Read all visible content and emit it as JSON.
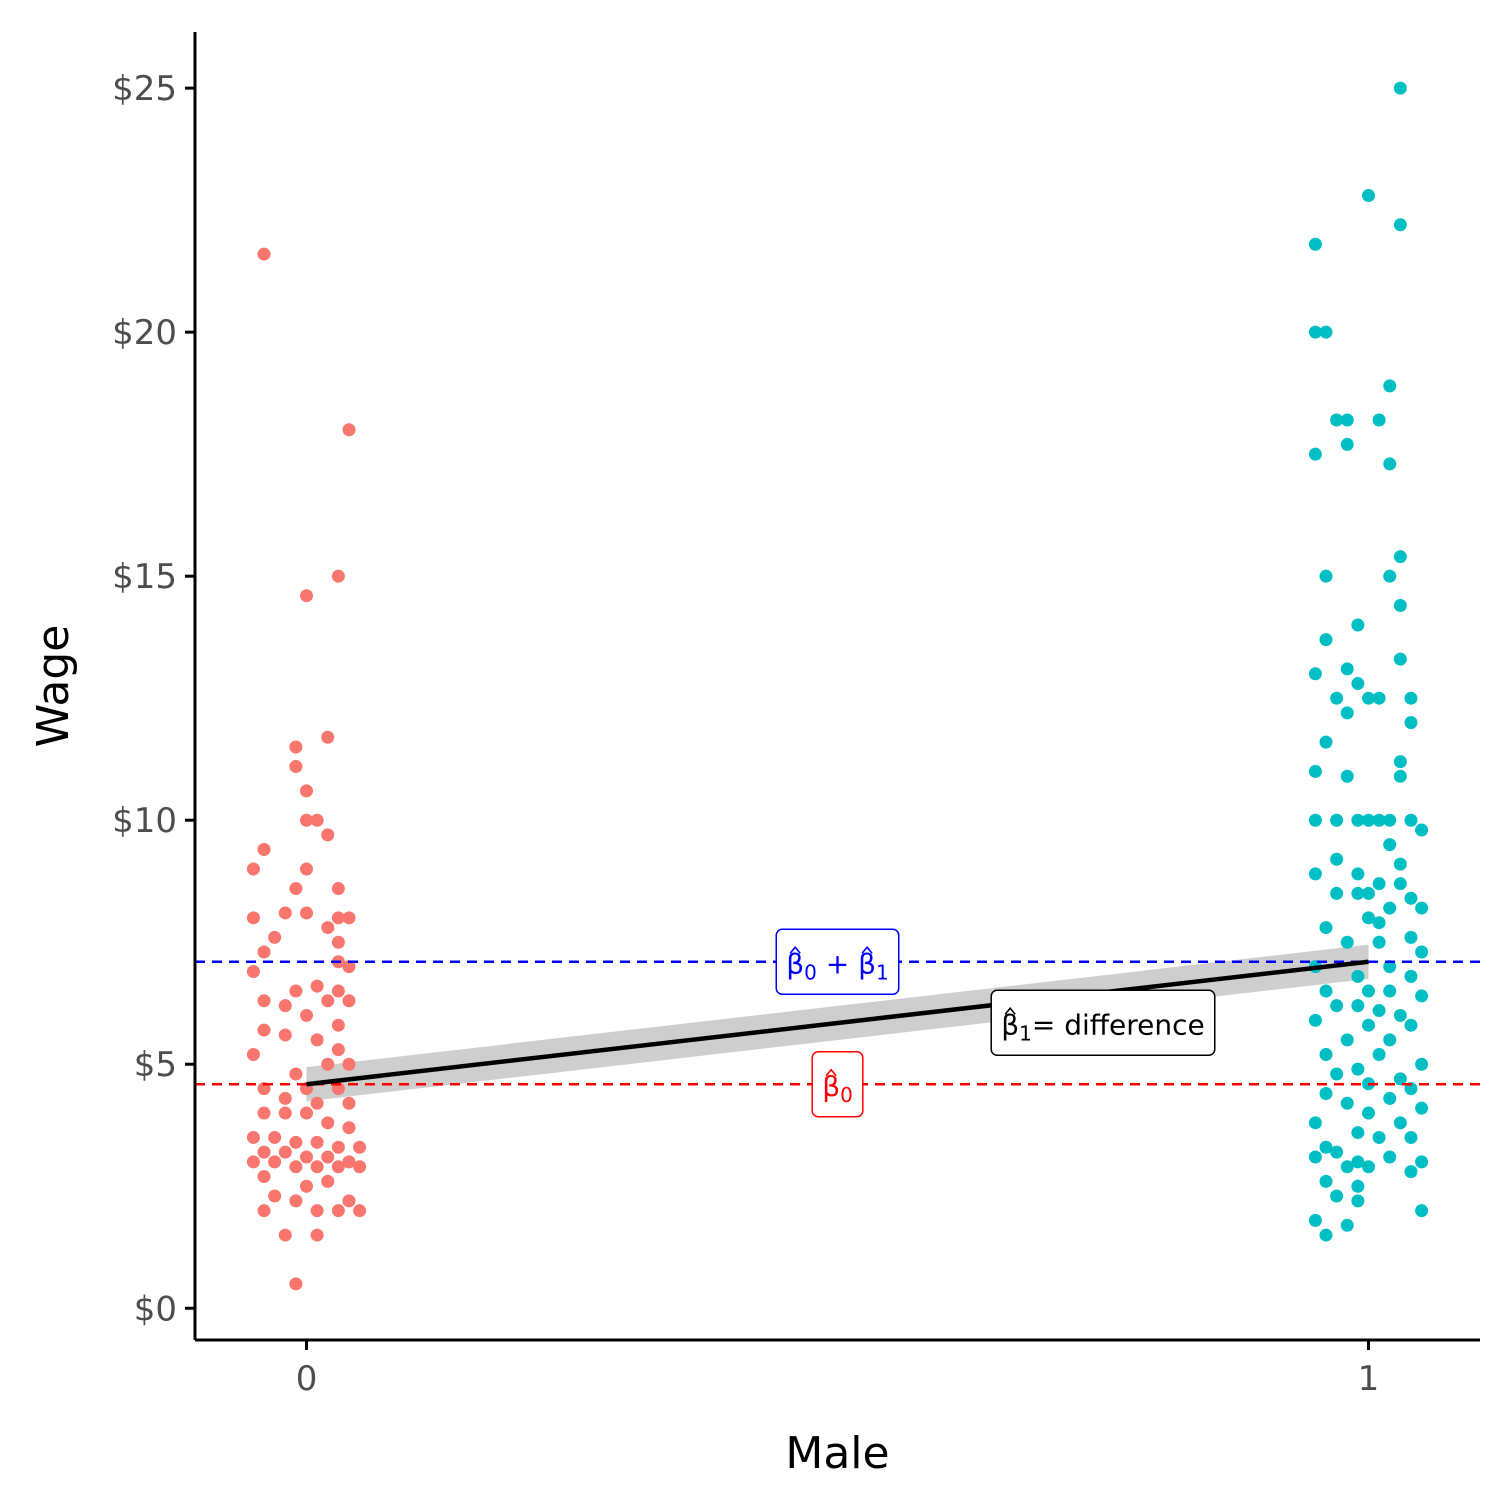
{
  "chart_data": {
    "type": "scatter",
    "xlabel": "Male",
    "ylabel": "Wage",
    "x_ticks": [
      0,
      1
    ],
    "x_tick_labels": [
      "0",
      "1"
    ],
    "xlim": [
      -0.105,
      1.105
    ],
    "y_ticks": [
      0,
      5,
      10,
      15,
      20,
      25
    ],
    "y_tick_labels": [
      "$0",
      "$5",
      "$10",
      "$15",
      "$20",
      "$25"
    ],
    "ylim": [
      -0.65,
      26.15
    ],
    "grid": false,
    "legend": "none",
    "colors": {
      "female": "#F8766D",
      "male": "#00BFC4",
      "regression_line": "#000000",
      "confidence_band": "#BEBEBE",
      "beta0_line": "#FF0000",
      "beta0_plus_beta1_line": "#0000FF",
      "axis": "#000000"
    },
    "series": [
      {
        "group": 0,
        "points": [
          [
            -0.04,
            21.6
          ],
          [
            0.04,
            18.0
          ],
          [
            0.03,
            15.0
          ],
          [
            0.0,
            14.6
          ],
          [
            0.02,
            11.7
          ],
          [
            -0.01,
            11.5
          ],
          [
            -0.01,
            11.1
          ],
          [
            0.0,
            10.6
          ],
          [
            0.0,
            10.0
          ],
          [
            0.01,
            10.0
          ],
          [
            0.02,
            9.7
          ],
          [
            -0.04,
            9.4
          ],
          [
            0.0,
            9.0
          ],
          [
            -0.05,
            9.0
          ],
          [
            0.03,
            8.6
          ],
          [
            -0.01,
            8.6
          ],
          [
            0.0,
            8.1
          ],
          [
            -0.02,
            8.1
          ],
          [
            -0.05,
            8.0
          ],
          [
            0.03,
            8.0
          ],
          [
            0.04,
            8.0
          ],
          [
            0.02,
            7.8
          ],
          [
            -0.03,
            7.6
          ],
          [
            0.03,
            7.5
          ],
          [
            -0.04,
            7.3
          ],
          [
            0.03,
            7.1
          ],
          [
            0.04,
            7.0
          ],
          [
            -0.05,
            6.9
          ],
          [
            0.01,
            6.6
          ],
          [
            -0.01,
            6.5
          ],
          [
            0.03,
            6.5
          ],
          [
            -0.04,
            6.3
          ],
          [
            0.02,
            6.3
          ],
          [
            0.04,
            6.3
          ],
          [
            -0.02,
            6.2
          ],
          [
            0.0,
            6.0
          ],
          [
            0.03,
            5.8
          ],
          [
            -0.04,
            5.7
          ],
          [
            -0.02,
            5.6
          ],
          [
            0.01,
            5.5
          ],
          [
            0.03,
            5.3
          ],
          [
            -0.05,
            5.2
          ],
          [
            0.02,
            5.0
          ],
          [
            0.04,
            5.0
          ],
          [
            -0.01,
            4.8
          ],
          [
            -0.04,
            4.5
          ],
          [
            0.0,
            4.5
          ],
          [
            0.03,
            4.5
          ],
          [
            -0.02,
            4.3
          ],
          [
            0.01,
            4.2
          ],
          [
            0.04,
            4.2
          ],
          [
            -0.04,
            4.0
          ],
          [
            -0.02,
            4.0
          ],
          [
            0.0,
            4.0
          ],
          [
            0.02,
            3.8
          ],
          [
            0.04,
            3.7
          ],
          [
            -0.05,
            3.5
          ],
          [
            -0.03,
            3.5
          ],
          [
            -0.01,
            3.4
          ],
          [
            0.01,
            3.4
          ],
          [
            0.03,
            3.3
          ],
          [
            0.05,
            3.3
          ],
          [
            -0.04,
            3.2
          ],
          [
            -0.02,
            3.2
          ],
          [
            0.0,
            3.1
          ],
          [
            0.02,
            3.1
          ],
          [
            0.04,
            3.0
          ],
          [
            -0.05,
            3.0
          ],
          [
            -0.03,
            3.0
          ],
          [
            -0.01,
            2.9
          ],
          [
            0.01,
            2.9
          ],
          [
            0.03,
            2.9
          ],
          [
            0.05,
            2.9
          ],
          [
            -0.04,
            2.7
          ],
          [
            0.02,
            2.6
          ],
          [
            0.0,
            2.5
          ],
          [
            -0.03,
            2.3
          ],
          [
            0.04,
            2.2
          ],
          [
            -0.01,
            2.2
          ],
          [
            0.03,
            2.0
          ],
          [
            -0.04,
            2.0
          ],
          [
            0.05,
            2.0
          ],
          [
            0.01,
            2.0
          ],
          [
            -0.02,
            1.5
          ],
          [
            0.01,
            1.5
          ],
          [
            -0.01,
            0.5
          ]
        ]
      },
      {
        "group": 1,
        "points": [
          [
            1.03,
            25.0
          ],
          [
            1.0,
            22.8
          ],
          [
            1.03,
            22.2
          ],
          [
            0.95,
            21.8
          ],
          [
            0.95,
            20.0
          ],
          [
            0.96,
            20.0
          ],
          [
            1.02,
            18.9
          ],
          [
            0.97,
            18.2
          ],
          [
            0.98,
            18.2
          ],
          [
            1.01,
            18.2
          ],
          [
            0.98,
            17.7
          ],
          [
            0.95,
            17.5
          ],
          [
            1.02,
            17.3
          ],
          [
            1.03,
            15.4
          ],
          [
            0.96,
            15.0
          ],
          [
            1.02,
            15.0
          ],
          [
            1.03,
            14.4
          ],
          [
            0.99,
            14.0
          ],
          [
            0.96,
            13.7
          ],
          [
            1.03,
            13.3
          ],
          [
            0.98,
            13.1
          ],
          [
            0.95,
            13.0
          ],
          [
            0.99,
            12.8
          ],
          [
            0.97,
            12.5
          ],
          [
            1.0,
            12.5
          ],
          [
            1.01,
            12.5
          ],
          [
            1.04,
            12.5
          ],
          [
            0.98,
            12.2
          ],
          [
            1.04,
            12.0
          ],
          [
            0.96,
            11.6
          ],
          [
            1.03,
            11.2
          ],
          [
            0.95,
            11.0
          ],
          [
            0.98,
            10.9
          ],
          [
            1.03,
            10.9
          ],
          [
            0.95,
            10.0
          ],
          [
            0.97,
            10.0
          ],
          [
            0.99,
            10.0
          ],
          [
            1.0,
            10.0
          ],
          [
            1.01,
            10.0
          ],
          [
            1.02,
            10.0
          ],
          [
            1.04,
            10.0
          ],
          [
            1.05,
            9.8
          ],
          [
            1.02,
            9.5
          ],
          [
            0.97,
            9.2
          ],
          [
            1.03,
            9.1
          ],
          [
            0.99,
            8.9
          ],
          [
            0.95,
            8.9
          ],
          [
            1.01,
            8.7
          ],
          [
            1.03,
            8.7
          ],
          [
            0.97,
            8.5
          ],
          [
            0.99,
            8.5
          ],
          [
            1.0,
            8.5
          ],
          [
            1.04,
            8.4
          ],
          [
            1.02,
            8.2
          ],
          [
            1.05,
            8.2
          ],
          [
            1.0,
            8.0
          ],
          [
            1.01,
            7.9
          ],
          [
            0.96,
            7.8
          ],
          [
            1.04,
            7.6
          ],
          [
            0.98,
            7.5
          ],
          [
            1.01,
            7.5
          ],
          [
            1.05,
            7.3
          ],
          [
            0.95,
            7.0
          ],
          [
            1.02,
            7.0
          ],
          [
            0.99,
            6.8
          ],
          [
            1.04,
            6.8
          ],
          [
            0.96,
            6.5
          ],
          [
            1.0,
            6.5
          ],
          [
            1.02,
            6.5
          ],
          [
            1.05,
            6.4
          ],
          [
            0.97,
            6.2
          ],
          [
            0.99,
            6.2
          ],
          [
            1.01,
            6.1
          ],
          [
            1.03,
            6.0
          ],
          [
            0.95,
            5.9
          ],
          [
            1.0,
            5.8
          ],
          [
            1.04,
            5.8
          ],
          [
            0.98,
            5.5
          ],
          [
            1.02,
            5.5
          ],
          [
            0.96,
            5.2
          ],
          [
            1.01,
            5.2
          ],
          [
            1.05,
            5.0
          ],
          [
            0.99,
            4.9
          ],
          [
            0.97,
            4.8
          ],
          [
            1.03,
            4.7
          ],
          [
            1.0,
            4.6
          ],
          [
            1.04,
            4.5
          ],
          [
            0.96,
            4.4
          ],
          [
            1.02,
            4.3
          ],
          [
            0.98,
            4.2
          ],
          [
            1.05,
            4.1
          ],
          [
            1.0,
            4.0
          ],
          [
            0.95,
            3.8
          ],
          [
            1.03,
            3.8
          ],
          [
            0.99,
            3.6
          ],
          [
            1.01,
            3.5
          ],
          [
            1.04,
            3.5
          ],
          [
            0.96,
            3.3
          ],
          [
            0.97,
            3.2
          ],
          [
            1.02,
            3.1
          ],
          [
            0.95,
            3.1
          ],
          [
            1.05,
            3.0
          ],
          [
            0.99,
            3.0
          ],
          [
            1.0,
            2.9
          ],
          [
            0.98,
            2.9
          ],
          [
            1.04,
            2.8
          ],
          [
            0.96,
            2.6
          ],
          [
            0.99,
            2.5
          ],
          [
            0.97,
            2.3
          ],
          [
            0.99,
            2.2
          ],
          [
            1.05,
            2.0
          ],
          [
            0.95,
            1.8
          ],
          [
            0.98,
            1.7
          ],
          [
            0.96,
            1.5
          ]
        ]
      }
    ],
    "regression": {
      "intercept": 4.59,
      "slope": 2.51,
      "x_range": [
        0,
        1
      ],
      "se_band": 0.35
    },
    "reference_lines": [
      {
        "name": "beta0",
        "y": 4.59,
        "style": "dashed"
      },
      {
        "name": "beta0_plus_beta1",
        "y": 7.1,
        "style": "dashed"
      }
    ],
    "annotations": [
      {
        "id": "beta0-plus-beta1-label",
        "symbol": "β",
        "text": "β0 + β1",
        "x": 0.5,
        "y": 7.1
      },
      {
        "id": "beta0-label",
        "symbol": "β",
        "text": "β0",
        "x": 0.5,
        "y": 4.59
      },
      {
        "id": "beta1-label",
        "symbol": "β",
        "text": "β1",
        "suffix": "= difference",
        "x": 0.75,
        "y": 5.85
      }
    ]
  }
}
